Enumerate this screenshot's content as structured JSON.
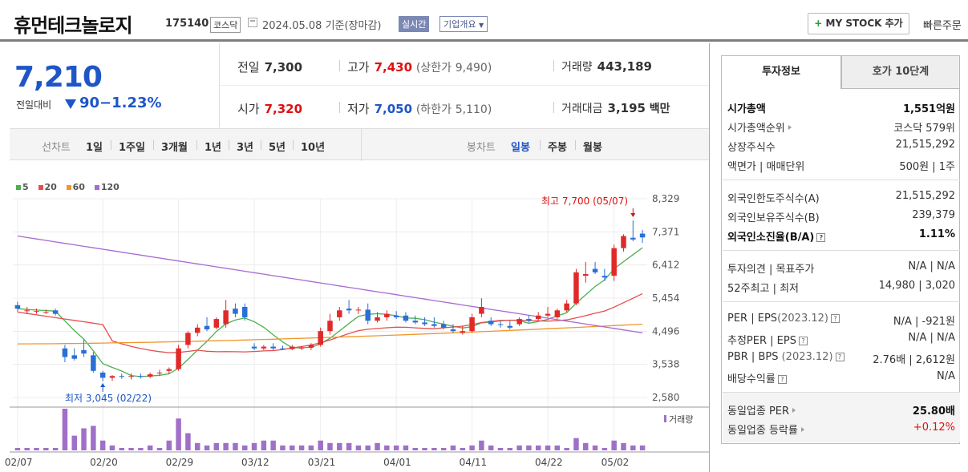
{
  "header": {
    "name": "휴먼테크놀로지",
    "code": "175140",
    "market": "코스닥",
    "date": "2024.05.08  기준(장마감)",
    "realtime": "실시간",
    "corp_info": "기업개요",
    "mystock": "MY STOCK 추가",
    "quick_order": "빠른주문"
  },
  "price": {
    "current": "7,210",
    "change_label": "전일대비",
    "change": "90",
    "change_pct": "−1.23%"
  },
  "quotes": {
    "prev_label": "전일",
    "prev": "7,300",
    "high_label": "고가",
    "high": "7,430",
    "upper_label": "(상한가",
    "upper": "9,490)",
    "volume_label": "거래량",
    "volume": "443,189",
    "open_label": "시가",
    "open": "7,320",
    "low_label": "저가",
    "low": "7,050",
    "lower_label": "(하한가",
    "lower": "5,110)",
    "amount_label": "거래대금",
    "amount": "3,195",
    "amount_unit": "백만"
  },
  "periods": {
    "line_label": "선차트",
    "line_items": [
      "1일",
      "1주일",
      "3개월",
      "1년",
      "3년",
      "5년",
      "10년"
    ],
    "candle_label": "봉차트",
    "candle_items": [
      "일봉",
      "주봉",
      "월봉"
    ],
    "active_candle": "일봉"
  },
  "chart_data": {
    "type": "candlestick",
    "ma_legend": [
      "5",
      "20",
      "60",
      "120"
    ],
    "ma_colors": [
      "#4caf50",
      "#e84d4d",
      "#f0962a",
      "#a66bd3"
    ],
    "up_color": "#e02a2a",
    "down_color": "#2a6fd6",
    "ylim": [
      2580,
      8329
    ],
    "y_ticks": [
      "8,329",
      "7,371",
      "6,412",
      "5,454",
      "4,496",
      "3,538",
      "2,580"
    ],
    "x_ticks": [
      "02/07",
      "02/20",
      "02/29",
      "03/12",
      "03/21",
      "04/01",
      "04/11",
      "04/22",
      "05/02"
    ],
    "high_annotation": "최고  7,700 (05/07)",
    "low_annotation": "최저  3,045 (02/22)",
    "volume_label": "거래량",
    "candles": [
      [
        5250,
        5350,
        5050,
        5150
      ],
      [
        5100,
        5200,
        5000,
        5100
      ],
      [
        5080,
        5150,
        5000,
        5080
      ],
      [
        5050,
        5120,
        5000,
        5050
      ],
      [
        5100,
        5150,
        4950,
        5000
      ],
      [
        4000,
        4100,
        3600,
        3750
      ],
      [
        3800,
        4000,
        3650,
        3700
      ],
      [
        3950,
        4250,
        3750,
        3850
      ],
      [
        3800,
        3900,
        3300,
        3350
      ],
      [
        3300,
        3350,
        3050,
        3150
      ],
      [
        3150,
        3230,
        3060,
        3200
      ],
      [
        3200,
        3270,
        3120,
        3180
      ],
      [
        3180,
        3280,
        3100,
        3200
      ],
      [
        3200,
        3270,
        3130,
        3180
      ],
      [
        3180,
        3300,
        3140,
        3250
      ],
      [
        3300,
        3380,
        3200,
        3300
      ],
      [
        3350,
        3450,
        3250,
        3400
      ],
      [
        3400,
        4100,
        3350,
        4000
      ],
      [
        4100,
        4500,
        4000,
        4450
      ],
      [
        4450,
        4700,
        4350,
        4600
      ],
      [
        4650,
        4900,
        4500,
        4550
      ],
      [
        4600,
        4900,
        4550,
        4850
      ],
      [
        4700,
        5400,
        4600,
        5100
      ],
      [
        5150,
        5300,
        4900,
        5000
      ],
      [
        5200,
        5300,
        4800,
        4900
      ],
      [
        4050,
        4150,
        3950,
        4000
      ],
      [
        4000,
        4100,
        3950,
        4050
      ],
      [
        4050,
        4150,
        3950,
        4000
      ],
      [
        4000,
        4080,
        3950,
        3980
      ],
      [
        3980,
        4100,
        3950,
        4050
      ],
      [
        4000,
        4070,
        3950,
        4020
      ],
      [
        4020,
        4150,
        3950,
        4100
      ],
      [
        4100,
        4600,
        4050,
        4500
      ],
      [
        4500,
        5000,
        4400,
        4800
      ],
      [
        4900,
        5200,
        4800,
        5100
      ],
      [
        5150,
        5400,
        5000,
        5100
      ],
      [
        5100,
        5200,
        5000,
        5120
      ],
      [
        5120,
        5300,
        4700,
        4800
      ],
      [
        4800,
        5050,
        4750,
        4900
      ],
      [
        4900,
        5100,
        4800,
        5000
      ],
      [
        4950,
        5080,
        4850,
        4900
      ],
      [
        4950,
        5050,
        4750,
        4800
      ],
      [
        4800,
        4950,
        4700,
        4750
      ],
      [
        4750,
        4900,
        4650,
        4700
      ],
      [
        4700,
        4900,
        4600,
        4650
      ],
      [
        4700,
        4800,
        4550,
        4600
      ],
      [
        4550,
        4700,
        4450,
        4500
      ],
      [
        4450,
        4650,
        4400,
        4500
      ],
      [
        4500,
        5000,
        4450,
        4900
      ],
      [
        5000,
        5450,
        4900,
        5200
      ],
      [
        4800,
        4900,
        4650,
        4700
      ],
      [
        4700,
        4800,
        4600,
        4680
      ],
      [
        4650,
        4800,
        4550,
        4600
      ],
      [
        4700,
        4900,
        4650,
        4850
      ],
      [
        4850,
        4950,
        4750,
        4800
      ],
      [
        4850,
        5050,
        4800,
        4950
      ],
      [
        4950,
        5200,
        4900,
        5000
      ],
      [
        4900,
        5150,
        4850,
        5100
      ],
      [
        5100,
        5400,
        5050,
        5300
      ],
      [
        5300,
        6300,
        5250,
        6200
      ],
      [
        6100,
        6500,
        5900,
        6150
      ],
      [
        6300,
        6500,
        6150,
        6200
      ],
      [
        6100,
        6300,
        5950,
        6050
      ],
      [
        6100,
        7000,
        5950,
        6900
      ],
      [
        6900,
        7300,
        6800,
        7250
      ],
      [
        7200,
        7700,
        7100,
        7150
      ],
      [
        7320,
        7430,
        7050,
        7210
      ]
    ],
    "volumes": [
      1,
      1,
      1,
      1,
      1,
      17,
      6,
      9,
      10,
      4,
      2,
      1,
      1,
      1,
      2,
      1,
      4,
      13,
      7,
      3,
      2,
      3,
      3,
      3,
      2,
      3,
      4,
      4,
      2,
      2,
      2,
      2,
      4,
      3,
      3,
      3,
      2,
      2,
      3,
      2,
      2,
      2,
      1,
      1,
      1,
      1,
      2,
      1,
      2,
      4,
      2,
      1,
      1,
      2,
      2,
      2,
      2,
      2,
      1,
      5,
      3,
      2,
      1,
      4,
      3,
      2,
      2
    ]
  },
  "invest": {
    "tab_active": "투자정보",
    "tab_other": "호가 10단계",
    "market_cap_label": "시가총액",
    "market_cap": "1,551억원",
    "rank_label": "시가총액순위",
    "rank": "코스닥 579위",
    "shares_label": "상장주식수",
    "shares": "21,515,292",
    "par_label": "액면가",
    "unit_label": "매매단위",
    "par": "500원",
    "unit": "1주",
    "foreign_limit_label": "외국인한도주식수(A)",
    "foreign_limit": "21,515,292",
    "foreign_hold_label": "외국인보유주식수(B)",
    "foreign_hold": "239,379",
    "foreign_ratio_label": "외국인소진율(B/A)",
    "foreign_ratio": "1.11%",
    "opinion_label": "투자의견",
    "target_label": "목표주가",
    "opinion": "N/A",
    "target": "N/A",
    "w52_high_label": "52주최고",
    "w52_low_label": "최저",
    "w52_high": "14,980",
    "w52_low": "3,020",
    "per_label": "PER",
    "eps_label": "EPS",
    "eps_period": "(2023.12)",
    "per": "N/A",
    "eps": "-921원",
    "est_per_label": "추정PER",
    "est_eps_label": "EPS",
    "est_per": "N/A",
    "est_eps": "N/A",
    "pbr_label": "PBR",
    "bps_label": "BPS",
    "bps_period": "(2023.12)",
    "pbr": "2.76배",
    "bps": "2,612원",
    "div_label": "배당수익률",
    "div": "N/A",
    "ind_per_label": "동일업종 PER",
    "ind_per": "25.80배",
    "ind_rate_label": "동일업종 등락률",
    "ind_rate": "+0.12%"
  }
}
